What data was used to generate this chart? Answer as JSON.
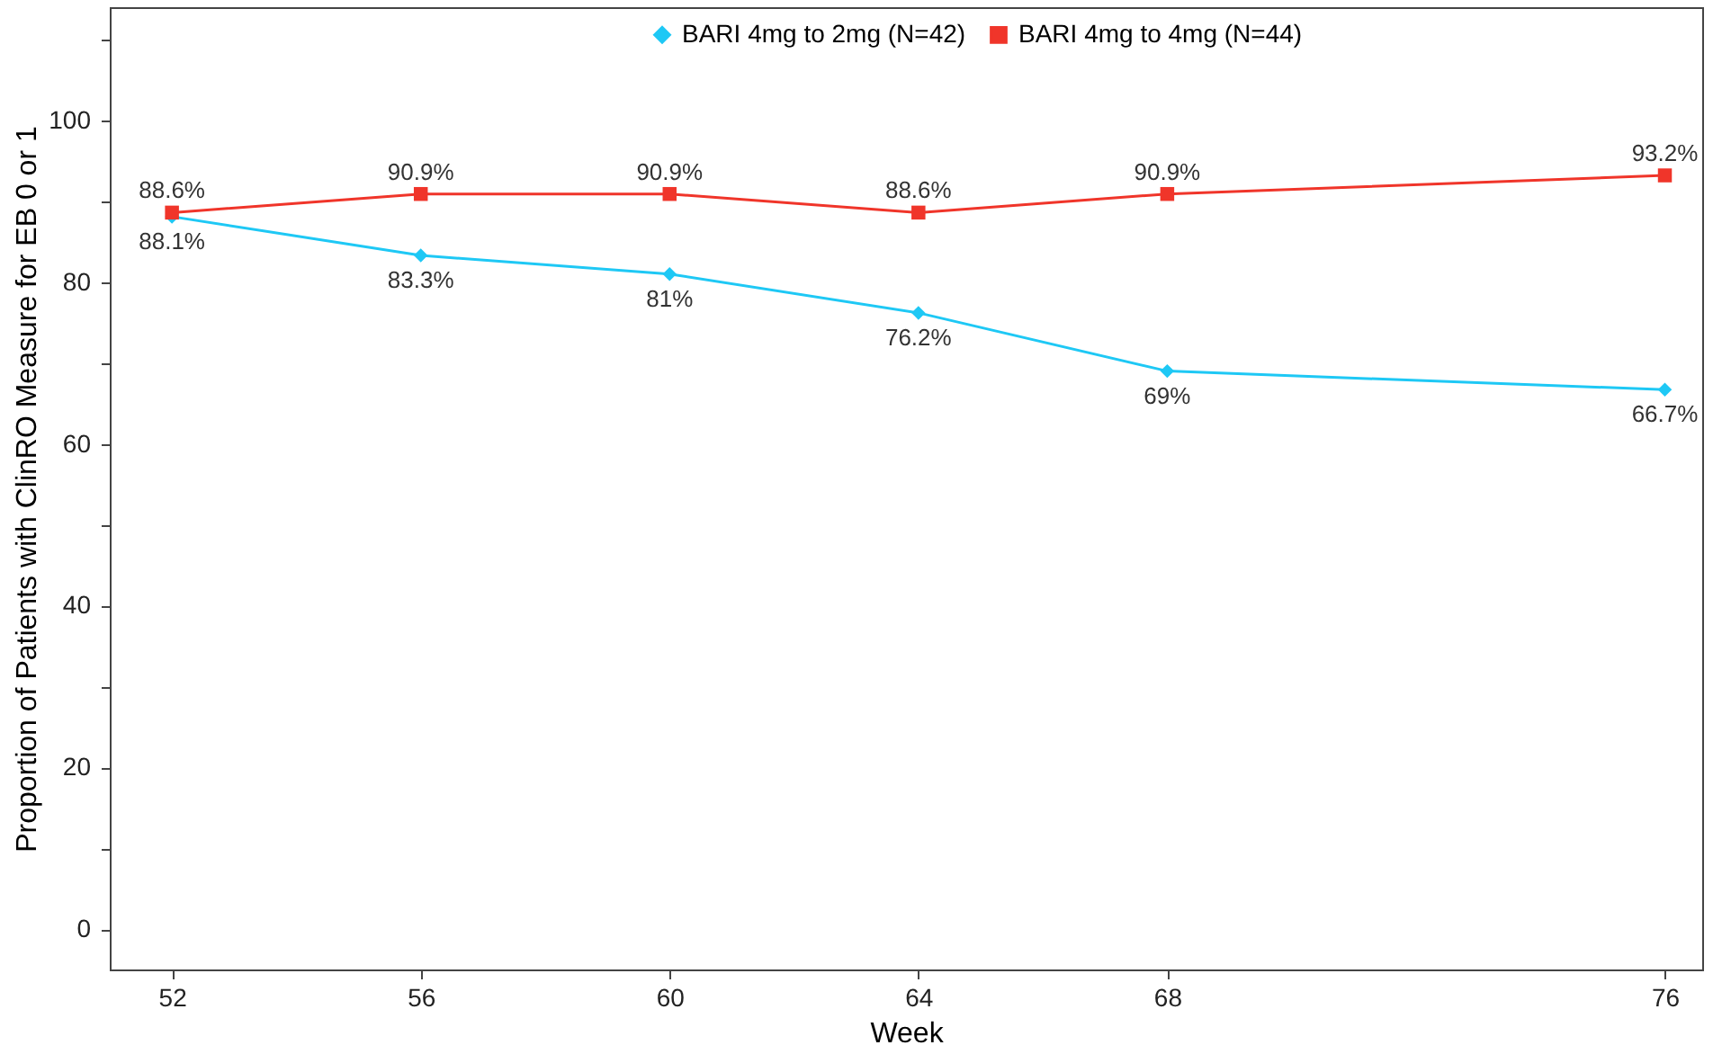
{
  "chart_data": {
    "type": "line",
    "xlabel": "Week",
    "ylabel": "Proportion of Patients with ClinRO Measure for EB 0 or 1",
    "x": [
      52,
      56,
      60,
      64,
      68,
      76
    ],
    "xlim": [
      51,
      76.6
    ],
    "xticks": [
      52,
      56,
      60,
      64,
      68,
      76
    ],
    "ylim": [
      -5,
      114
    ],
    "yticks": [
      0,
      {
        "value": 10,
        "label": null
      },
      20,
      {
        "value": 30,
        "label": null
      },
      40,
      {
        "value": 50,
        "label": null
      },
      60,
      {
        "value": 70,
        "label": null
      },
      80,
      {
        "value": 90,
        "label": null
      },
      100,
      {
        "value": 110,
        "label": null
      }
    ],
    "grid": false,
    "legend": "top",
    "line_style": "solid",
    "series": [
      {
        "name": "BARI 4mg to 2mg (N=42)",
        "color": "#1ec8f5",
        "marker": "diamond",
        "values": [
          88.1,
          83.3,
          81,
          76.2,
          69,
          66.7
        ],
        "value_labels": [
          "88.1%",
          "83.3%",
          "81%",
          "76.2%",
          "69%",
          "66.7%"
        ]
      },
      {
        "name": "BARI 4mg to 4mg (N=44)",
        "color": "#f0352a",
        "marker": "square",
        "values": [
          88.6,
          90.9,
          90.9,
          88.6,
          90.9,
          93.2
        ],
        "value_labels": [
          "88.6%",
          "90.9%",
          "90.9%",
          "88.6%",
          "90.9%",
          "93.2%"
        ]
      }
    ]
  }
}
